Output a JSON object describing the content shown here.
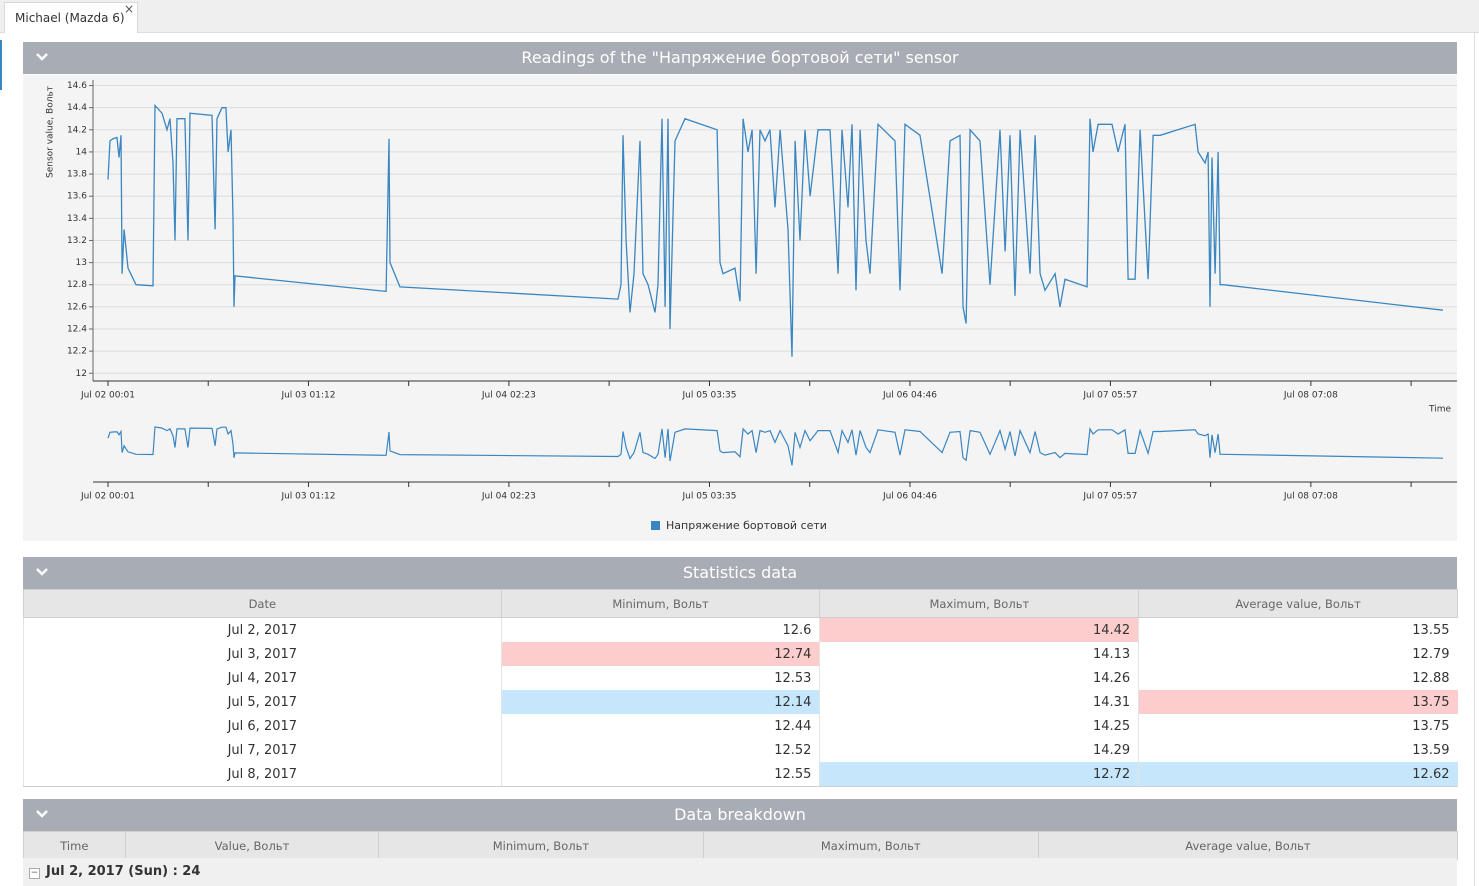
{
  "tab": {
    "title": "Michael (Mazda 6)",
    "close": "×"
  },
  "chart_panel": {
    "title": "Readings of the \"Напряжение бортовой сети\" sensor"
  },
  "chart_data": {
    "type": "line",
    "y_label": "Sensor value, Вольт",
    "x_label": "Time",
    "x": [
      "Jul 02 00:01",
      "Jul 02 00:16",
      "Jul 02 00:39",
      "Jul 02 01:09",
      "Jul 02 01:24",
      "Jul 02 01:39",
      "Jul 02 01:47",
      "Jul 02 02:02",
      "Jul 02 02:32",
      "Jul 02 03:32",
      "Jul 02 05:40",
      "Jul 02 05:55",
      "Jul 02 06:48",
      "Jul 02 07:26",
      "Jul 02 07:48",
      "Jul 02 08:11",
      "Jul 02 08:26",
      "Jul 02 08:41",
      "Jul 02 09:41",
      "Jul 02 10:04",
      "Jul 02 10:19",
      "Jul 02 13:05",
      "Jul 02 13:28",
      "Jul 02 13:43",
      "Jul 02 14:20",
      "Jul 02 14:50",
      "Jul 02 15:06",
      "Jul 02 15:28",
      "Jul 02 15:43",
      "Jul 02 15:51",
      "Jul 02 15:58",
      "Jul 03 10:57",
      "Jul 03 11:19",
      "Jul 03 11:27",
      "Jul 03 12:42",
      "Jul 04 16:05",
      "Jul 04 16:28",
      "Jul 04 16:43",
      "Jul 04 17:06",
      "Jul 04 17:36",
      "Jul 04 18:06",
      "Jul 04 18:51",
      "Jul 04 19:14",
      "Jul 04 19:52",
      "Jul 04 20:44",
      "Jul 04 21:07",
      "Jul 04 21:37",
      "Jul 04 22:00",
      "Jul 04 22:22",
      "Jul 04 22:37",
      "Jul 04 23:15",
      "Jul 05 00:30",
      "Jul 05 04:32",
      "Jul 05 04:54",
      "Jul 05 05:17",
      "Jul 05 06:47",
      "Jul 05 07:25",
      "Jul 05 07:48",
      "Jul 05 08:25",
      "Jul 05 08:56",
      "Jul 05 09:26",
      "Jul 05 09:56",
      "Jul 05 10:33",
      "Jul 05 11:11",
      "Jul 05 11:49",
      "Jul 05 12:27",
      "Jul 05 13:27",
      "Jul 05 13:57",
      "Jul 05 14:20",
      "Jul 05 14:57",
      "Jul 05 15:35",
      "Jul 05 16:13",
      "Jul 05 17:13",
      "Jul 05 18:43",
      "Jul 05 19:44",
      "Jul 05 20:14",
      "Jul 05 20:59",
      "Jul 05 21:29",
      "Jul 05 21:59",
      "Jul 05 22:30",
      "Jul 05 23:15",
      "Jul 05 23:45",
      "Jul 06 00:45",
      "Jul 06 02:53",
      "Jul 06 03:31",
      "Jul 06 04:09",
      "Jul 06 06:02",
      "Jul 06 08:48",
      "Jul 06 09:48",
      "Jul 06 11:03",
      "Jul 06 11:26",
      "Jul 06 11:49",
      "Jul 06 12:19",
      "Jul 06 13:34",
      "Jul 06 14:49",
      "Jul 06 16:05",
      "Jul 06 16:43",
      "Jul 06 17:20",
      "Jul 06 17:58",
      "Jul 06 18:36",
      "Jul 06 19:51",
      "Jul 06 20:29",
      "Jul 06 21:07",
      "Jul 06 21:44",
      "Jul 06 23:00",
      "Jul 06 23:37",
      "Jul 07 00:15",
      "Jul 07 03:01",
      "Jul 07 03:23",
      "Jul 07 03:46",
      "Jul 07 04:24",
      "Jul 07 06:09",
      "Jul 07 06:55",
      "Jul 07 07:47",
      "Jul 07 08:10",
      "Jul 07 09:03",
      "Jul 07 09:41",
      "Jul 07 10:41",
      "Jul 07 11:19",
      "Jul 07 12:12",
      "Jul 07 16:35",
      "Jul 07 16:58",
      "Jul 07 17:51",
      "Jul 07 18:13",
      "Jul 07 18:28",
      "Jul 07 18:43",
      "Jul 07 19:06",
      "Jul 07 19:29",
      "Jul 07 19:44",
      "Jul 07 20:06",
      "Jul 08 23:44"
    ],
    "series": [
      {
        "name": "Напряжение бортовой сети",
        "color": "#3a86c1",
        "values": [
          13.75,
          14.1,
          14.12,
          14.13,
          13.95,
          14.15,
          12.9,
          13.3,
          12.95,
          12.8,
          12.79,
          14.42,
          14.35,
          14.2,
          14.3,
          13.9,
          13.2,
          14.3,
          14.3,
          13.2,
          14.35,
          14.33,
          13.3,
          14.3,
          14.4,
          14.4,
          14.0,
          14.2,
          13.4,
          12.6,
          12.88,
          12.74,
          14.12,
          13.0,
          12.78,
          12.67,
          12.8,
          14.15,
          13.2,
          12.55,
          12.9,
          14.1,
          12.9,
          12.8,
          12.55,
          12.8,
          14.3,
          12.6,
          14.3,
          12.4,
          14.1,
          14.3,
          14.2,
          13.0,
          12.9,
          12.95,
          12.65,
          14.3,
          14.0,
          14.2,
          12.9,
          14.2,
          14.1,
          14.2,
          13.5,
          14.2,
          13.3,
          12.15,
          14.1,
          13.2,
          14.2,
          13.6,
          14.2,
          14.2,
          12.9,
          14.2,
          13.5,
          14.25,
          12.75,
          14.2,
          13.2,
          12.9,
          14.25,
          14.1,
          12.75,
          14.25,
          14.15,
          12.9,
          14.1,
          14.15,
          12.6,
          12.45,
          14.2,
          14.1,
          12.8,
          14.2,
          13.1,
          14.15,
          12.7,
          14.2,
          12.9,
          14.15,
          12.9,
          12.75,
          12.9,
          12.6,
          12.85,
          12.78,
          14.3,
          14.0,
          14.25,
          14.25,
          14.0,
          14.25,
          12.85,
          12.85,
          14.2,
          12.85,
          14.15,
          14.15,
          14.25,
          14.0,
          13.9,
          14.0,
          12.6,
          13.95,
          12.9,
          14.0,
          12.8,
          12.8,
          12.57
        ]
      }
    ],
    "xlim": [
      "Jul 02 00:01",
      "Jul 08 23:44"
    ],
    "xticks": [
      "Jul 02 00:01",
      "Jul 03 01:12",
      "Jul 04 02:23",
      "Jul 05 03:35",
      "Jul 06 04:46",
      "Jul 07 05:57",
      "Jul 08 07:08"
    ],
    "ylim": [
      11.93,
      14.65
    ],
    "yticks": [
      12,
      12.2,
      12.4,
      12.6,
      12.8,
      13,
      13.2,
      13.4,
      13.6,
      13.8,
      14,
      14.2,
      14.4,
      14.6
    ],
    "grid": true,
    "legend": "bottom",
    "navigator": true
  },
  "statistics": {
    "title": "Statistics data",
    "highlight_colors": {
      "max": "#fdcccc",
      "min": "#c6e6fc"
    },
    "columns": [
      "Date",
      "Minimum, Вольт",
      "Maximum, Вольт",
      "Average value, Вольт"
    ],
    "rows": [
      [
        "Jul 2, 2017",
        "12.6",
        {
          "text": "14.42",
          "mark": "max"
        },
        "13.55"
      ],
      [
        "Jul 3, 2017",
        {
          "text": "12.74",
          "mark": "max"
        },
        "14.13",
        "12.79"
      ],
      [
        "Jul 4, 2017",
        "12.53",
        "14.26",
        "12.88"
      ],
      [
        "Jul 5, 2017",
        {
          "text": "12.14",
          "mark": "min"
        },
        "14.31",
        {
          "text": "13.75",
          "mark": "max"
        }
      ],
      [
        "Jul 6, 2017",
        "12.44",
        "14.25",
        "13.75"
      ],
      [
        "Jul 7, 2017",
        "12.52",
        "14.29",
        "13.59"
      ],
      [
        "Jul 8, 2017",
        "12.55",
        {
          "text": "12.72",
          "mark": "min"
        },
        {
          "text": "12.62",
          "mark": "min"
        }
      ]
    ]
  },
  "breakdown": {
    "title": "Data breakdown",
    "columns": [
      "Time",
      "Value, Вольт",
      "Minimum, Вольт",
      "Maximum, Вольт",
      "Average value, Вольт"
    ],
    "groups": [
      {
        "toggle": "−",
        "label": "Jul 2, 2017 (Sun) : 24"
      }
    ]
  }
}
